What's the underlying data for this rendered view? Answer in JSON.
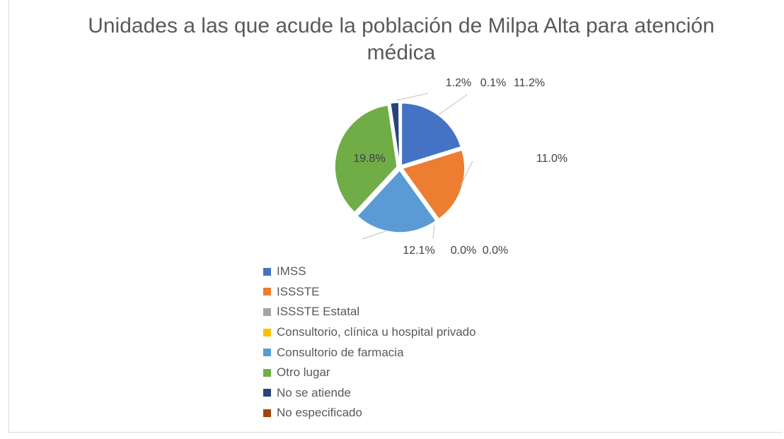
{
  "chart_data": {
    "type": "pie",
    "title": "Unidades a las que acude la población de Milpa Alta para atención médica",
    "categories": [
      "IMSS",
      "ISSSTE",
      "ISSSTE Estatal",
      "Consultorio, clínica u hospital privado",
      "Consultorio de farmacia",
      "Otro lugar",
      "No se atiende",
      "No especificado"
    ],
    "values": [
      11.2,
      11.0,
      0.0,
      0.0,
      12.1,
      19.8,
      1.2,
      0.1
    ],
    "value_labels": [
      "11.2%",
      "11.0%",
      "0.0%",
      "0.0%",
      "12.1%",
      "19.8%",
      "1.2%",
      "0.1%"
    ],
    "colors": [
      "#4472c4",
      "#ed7d31",
      "#a5a5a5",
      "#ffc000",
      "#5b9bd5",
      "#70ad47",
      "#264478",
      "#9e480e"
    ],
    "legend": "bottom"
  }
}
